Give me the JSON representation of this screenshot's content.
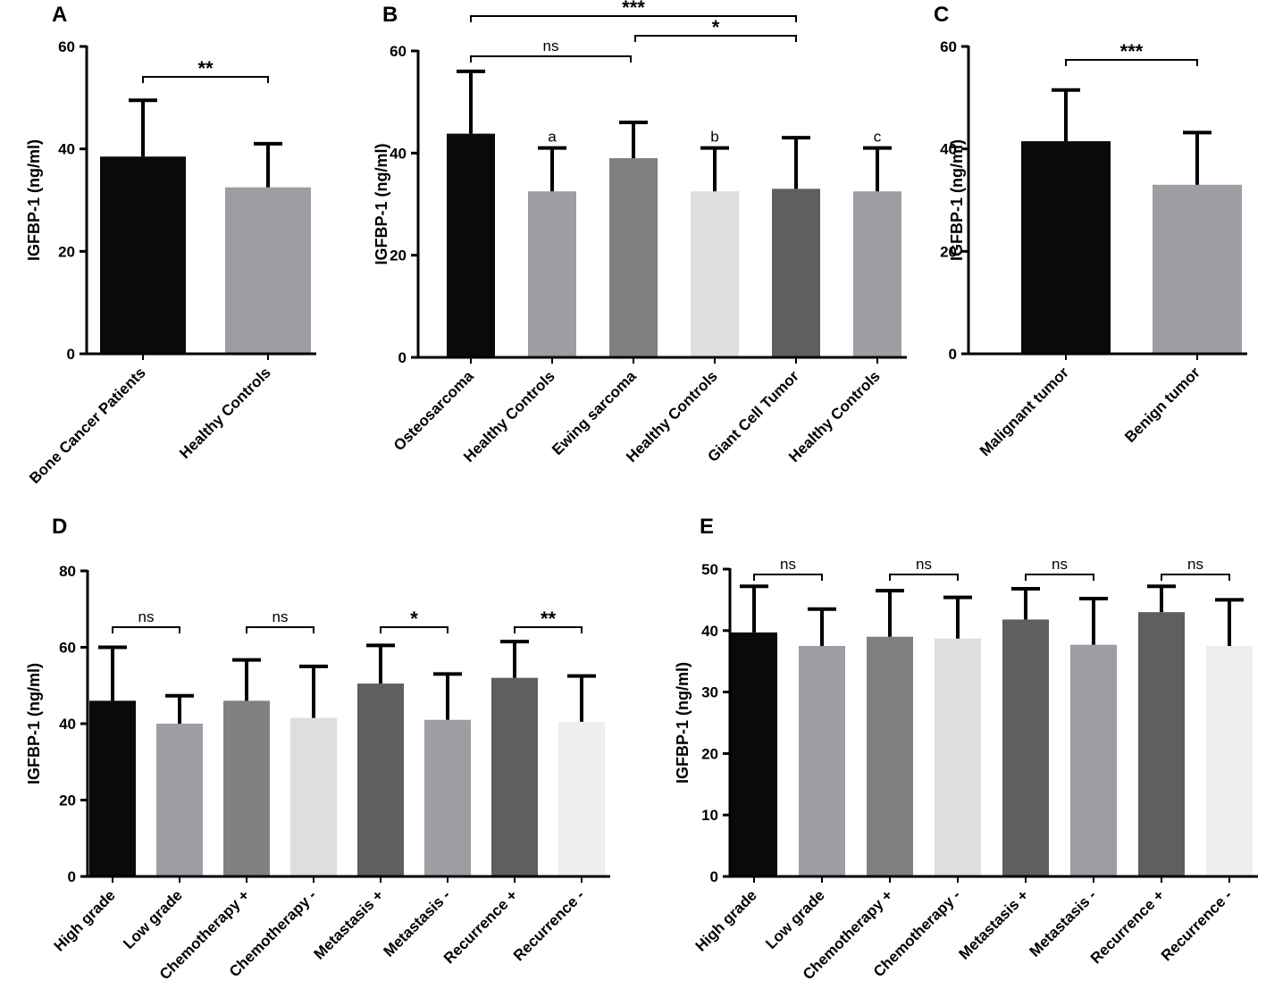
{
  "chart_data": [
    {
      "id": "A",
      "type": "bar",
      "panel_label": "A",
      "ylabel": "IGFBP-1 (ng/ml)",
      "ylim": [
        0,
        60
      ],
      "yticks": [
        "0",
        "20",
        "40",
        "60"
      ],
      "categories": [
        "Bone Cancer Patients",
        "Healthy Controls"
      ],
      "values": [
        38.5,
        32.5
      ],
      "errors": [
        11,
        8.5
      ],
      "colors": [
        "#0a0a0a",
        "#9d9ea3"
      ],
      "bar_letters": [
        "",
        ""
      ],
      "comparisons": [
        {
          "from": 0,
          "to": 1,
          "label": "**"
        }
      ]
    },
    {
      "id": "B",
      "type": "bar",
      "panel_label": "B",
      "ylabel": "IGFBP-1 (ng/ml)",
      "ylim": [
        0,
        60
      ],
      "yticks": [
        "0",
        "20",
        "40",
        "60"
      ],
      "categories": [
        "Osteosarcoma",
        "Healthy Controls",
        "Ewing sarcoma",
        "Healthy Controls",
        "Giant Cell Tumor",
        "Healthy Controls"
      ],
      "values": [
        43.8,
        32.5,
        39,
        32.5,
        33,
        32.5
      ],
      "errors": [
        12.2,
        8.5,
        7,
        8.5,
        10,
        8.5
      ],
      "colors": [
        "#0a0a0a",
        "#9d9ea3",
        "#7f807f",
        "#dededf",
        "#5f5f5f",
        "#9d9ea3"
      ],
      "bar_letters": [
        "",
        "a",
        "",
        "b",
        "",
        "c"
      ],
      "comparisons": [
        {
          "from": 0,
          "to": 2,
          "label": "ns"
        },
        {
          "from": 2,
          "to": 4,
          "label": "*"
        },
        {
          "from": 0,
          "to": 4,
          "label": "***"
        }
      ]
    },
    {
      "id": "C",
      "type": "bar",
      "panel_label": "C",
      "ylabel": "IGFBP-1 (ng/ml)",
      "ylim": [
        0,
        60
      ],
      "yticks": [
        "0",
        "20",
        "40",
        "60"
      ],
      "categories": [
        "Malignant tumor",
        "Benign tumor"
      ],
      "values": [
        41.5,
        33
      ],
      "errors": [
        10,
        10.2
      ],
      "colors": [
        "#0a0a0a",
        "#9d9ea3"
      ],
      "bar_letters": [
        "",
        ""
      ],
      "comparisons": [
        {
          "from": 0,
          "to": 1,
          "label": "***"
        }
      ]
    },
    {
      "id": "D",
      "type": "bar",
      "panel_label": "D",
      "ylabel": "IGFBP-1 (ng/ml)",
      "ylim": [
        0,
        80
      ],
      "yticks": [
        "0",
        "20",
        "40",
        "60",
        "80"
      ],
      "categories": [
        "High grade",
        "Low grade",
        "Chemotherapy +",
        "Chemotherapy -",
        "Metastasis +",
        "Metastasis -",
        "Recurrence +",
        "Recurrence -"
      ],
      "values": [
        46,
        40,
        46,
        41.5,
        50.5,
        41,
        52,
        40.5
      ],
      "errors": [
        14,
        7.3,
        10.7,
        13.5,
        10,
        12,
        9.5,
        12
      ],
      "colors": [
        "#0a0a0a",
        "#9d9ea3",
        "#7f807f",
        "#dededf",
        "#5f5f5f",
        "#9d9ea3",
        "#5f5f5f",
        "#eeeeef"
      ],
      "bar_letters": [
        "",
        "",
        "",
        "",
        "",
        "",
        "",
        ""
      ],
      "comparisons": [
        {
          "from": 0,
          "to": 1,
          "label": "ns"
        },
        {
          "from": 2,
          "to": 3,
          "label": "ns"
        },
        {
          "from": 4,
          "to": 5,
          "label": "*"
        },
        {
          "from": 6,
          "to": 7,
          "label": "**"
        }
      ]
    },
    {
      "id": "E",
      "type": "bar",
      "panel_label": "E",
      "ylabel": "IGFBP-1 (ng/ml)",
      "ylim": [
        0,
        50
      ],
      "yticks": [
        "0",
        "10",
        "20",
        "30",
        "40",
        "50"
      ],
      "categories": [
        "High grade",
        "Low grade",
        "Chemotherapy +",
        "Chemotherapy -",
        "Metastasis +",
        "Metastasis -",
        "Recurrence +",
        "Recurrence -"
      ],
      "values": [
        39.7,
        37.5,
        39,
        38.7,
        41.8,
        37.7,
        43,
        37.5
      ],
      "errors": [
        7.5,
        6,
        7.5,
        6.7,
        5,
        7.5,
        4.2,
        7.5
      ],
      "colors": [
        "#0a0a0a",
        "#9d9ea3",
        "#7f807f",
        "#dededf",
        "#5f5f5f",
        "#9d9ea3",
        "#5f5f5f",
        "#eeeeef"
      ],
      "bar_letters": [
        "",
        "",
        "",
        "",
        "",
        "",
        "",
        ""
      ],
      "comparisons": [
        {
          "from": 0,
          "to": 1,
          "label": "ns"
        },
        {
          "from": 2,
          "to": 3,
          "label": "ns"
        },
        {
          "from": 4,
          "to": 5,
          "label": "ns"
        },
        {
          "from": 6,
          "to": 7,
          "label": "ns"
        }
      ]
    }
  ]
}
